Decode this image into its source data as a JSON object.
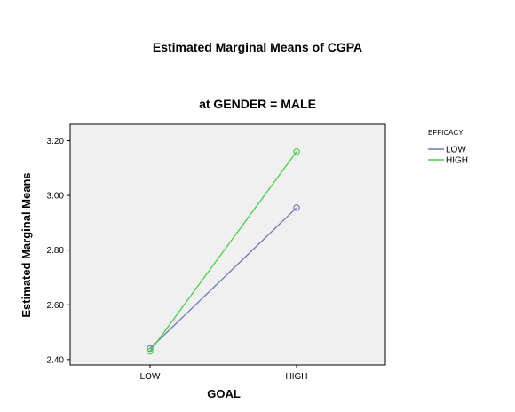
{
  "chart_data": {
    "type": "line",
    "title": "Estimated Marginal Means of CGPA",
    "subtitle": "at GENDER = MALE",
    "xlabel": "GOAL",
    "ylabel": "Estimated Marginal Means",
    "categories": [
      "LOW",
      "HIGH"
    ],
    "ylim": [
      2.38,
      3.26
    ],
    "yticks": [
      2.4,
      2.6,
      2.8,
      3.0,
      3.2
    ],
    "ytick_labels": [
      "2.40",
      "2.60",
      "2.80",
      "3.00",
      "3.20"
    ],
    "legend_title": "EFFICACY",
    "legend_position": "right",
    "grid": false,
    "plot_background": "#f0f0f0",
    "series": [
      {
        "name": "LOW",
        "color": "#6a79b8",
        "values": [
          2.44,
          2.955
        ]
      },
      {
        "name": "HIGH",
        "color": "#4dc94d",
        "values": [
          2.43,
          3.16
        ]
      }
    ]
  }
}
